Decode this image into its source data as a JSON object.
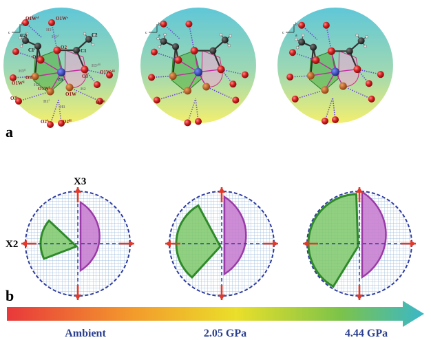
{
  "panel_a": {
    "label": "a",
    "axes_glyphs": {
      "b": "b",
      "c": "c",
      "a": "a"
    },
    "atom_labels": {
      "zn": "Zn",
      "c1": "C1",
      "c2": "C2",
      "c1p": "C1ⁱ",
      "c2p": "C2ⁱ",
      "o1w_vi": "O1Wᵛⁱ",
      "o1w_v": "O1Wᵛ",
      "o1w_ii": "O1Wⁱⁱ",
      "o1w_viii": "O1Wᵛⁱⁱⁱ",
      "o1w_i": "O1Wⁱ",
      "o1w": "O1W",
      "o2": "O2",
      "o2i": "O2ⁱ",
      "o3": "O3",
      "o3i": "O3ⁱ",
      "o3_iv": "O3ⁱᵛ",
      "o3_vii": "O3ᵛⁱⁱ",
      "o2_iv": "O2ⁱᵛ",
      "o2_iii": "O2ⁱⁱⁱ",
      "h1": "H1",
      "h1i": "H1ⁱ",
      "h2": "H2",
      "h2i": "H2ⁱ",
      "h3_ii": "H3ⁱⁱ",
      "h3_viii": "H3ᵛⁱⁱⁱ",
      "h1_v": "H1ᵛ",
      "h1_vi": "H1ᵛⁱ"
    }
  },
  "panel_b": {
    "label": "b",
    "axis_x3": "X3",
    "axis_x2": "X2"
  },
  "pressure_bar": {
    "labels": [
      "Ambient",
      "2.05 GPa",
      "4.44 GPa"
    ],
    "gradient": [
      "#e8383b",
      "#f39a2c",
      "#eadf2a",
      "#7cc34a",
      "#3ab7c8"
    ]
  },
  "colors": {
    "green_wedge": "#4cae3c",
    "pink_wedge": "#c468c6",
    "axis_blue": "#2f3c9e",
    "arrow_red": "#e23a2a",
    "label_navy": "#2b3f8f",
    "atom_red": "#d42020",
    "atom_dark": "#2a2a2a",
    "zn_blue": "#2233aa"
  }
}
